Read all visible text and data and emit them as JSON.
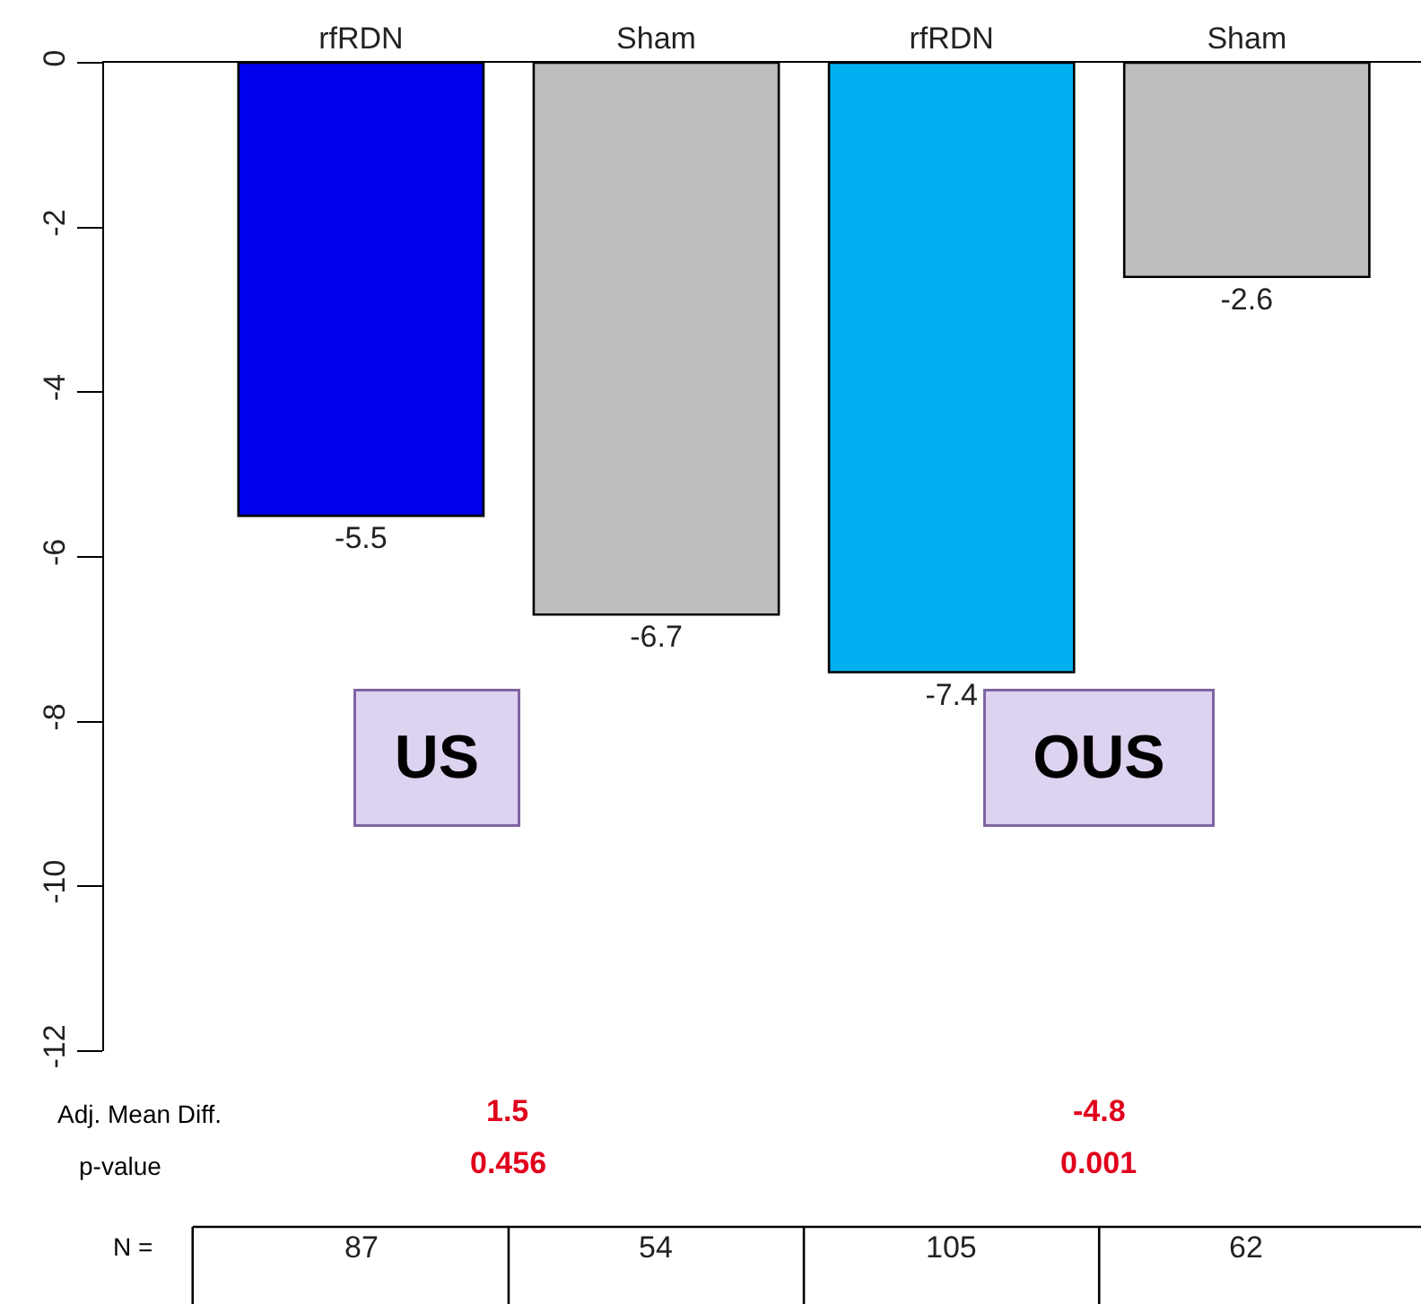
{
  "chart_data": {
    "type": "bar",
    "categories": [
      "rfRDN",
      "Sham",
      "rfRDN",
      "Sham"
    ],
    "values": [
      -5.5,
      -6.7,
      -7.4,
      -2.6
    ],
    "colors": [
      "#0000ee",
      "#bebebe",
      "#00b0f0",
      "#bebebe"
    ],
    "ylim": [
      -12,
      0
    ],
    "yticks": [
      0,
      -2,
      -4,
      -6,
      -8,
      -10,
      -12
    ],
    "data_labels": true,
    "annotations": [
      "US",
      "OUS",
      "Adj. Mean Diff.",
      "1.5",
      "-4.8",
      "p-value",
      "0.456",
      "0.001",
      "N =",
      "87",
      "54",
      "105",
      "62"
    ]
  }
}
